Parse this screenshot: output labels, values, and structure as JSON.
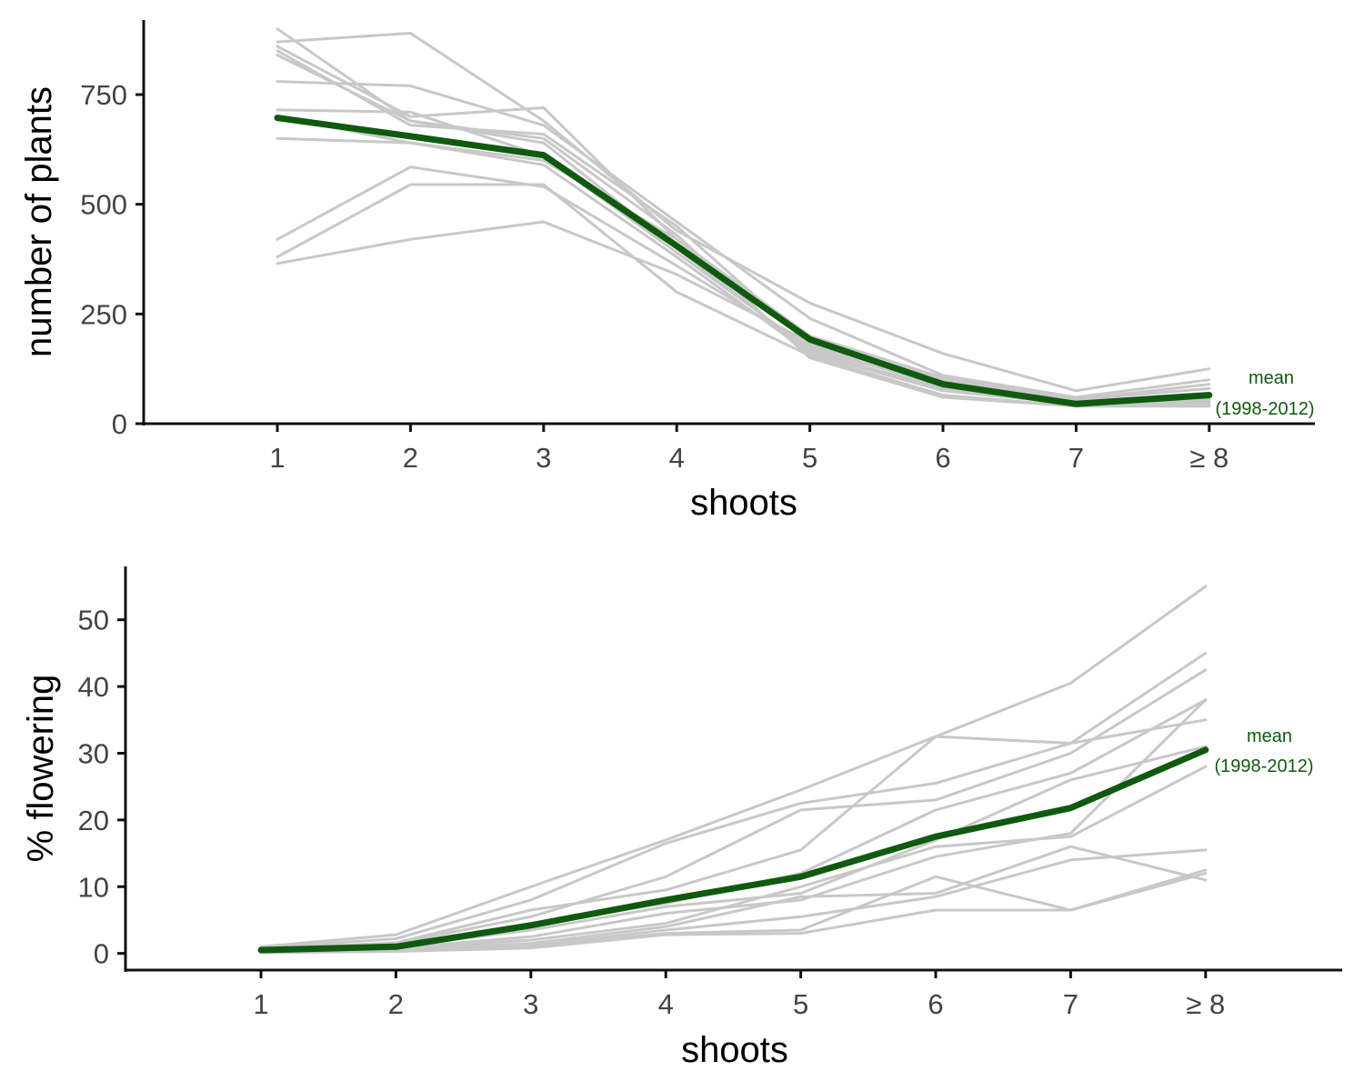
{
  "chart_data": [
    {
      "type": "line",
      "title": "",
      "xlabel": "shoots",
      "ylabel": "number of plants",
      "categories": [
        "1",
        "2",
        "3",
        "4",
        "5",
        "6",
        "7",
        "≥ 8"
      ],
      "yticks": [
        0,
        250,
        500,
        750
      ],
      "ylim": [
        0,
        920
      ],
      "grid": false,
      "legend": "none",
      "colors": {
        "years": "#c8c8c8",
        "mean": "#0f5a0f"
      },
      "series": [
        {
          "values": [
            900,
            690,
            650,
            430,
            150,
            60,
            40,
            45
          ]
        },
        {
          "values": [
            870,
            890,
            690,
            440,
            275,
            160,
            75,
            125
          ]
        },
        {
          "values": [
            860,
            700,
            720,
            420,
            200,
            105,
            55,
            90
          ]
        },
        {
          "values": [
            850,
            680,
            660,
            450,
            180,
            95,
            50,
            70
          ]
        },
        {
          "values": [
            840,
            690,
            640,
            400,
            165,
            80,
            45,
            60
          ]
        },
        {
          "values": [
            780,
            770,
            680,
            460,
            240,
            110,
            60,
            100
          ]
        },
        {
          "values": [
            715,
            710,
            610,
            390,
            170,
            90,
            50,
            65
          ]
        },
        {
          "values": [
            700,
            640,
            590,
            380,
            160,
            75,
            45,
            55
          ]
        },
        {
          "values": [
            650,
            640,
            600,
            420,
            190,
            100,
            55,
            80
          ]
        },
        {
          "values": [
            420,
            585,
            540,
            360,
            175,
            85,
            45,
            50
          ]
        },
        {
          "values": [
            380,
            545,
            545,
            300,
            155,
            65,
            40,
            40
          ]
        },
        {
          "values": [
            365,
            420,
            460,
            340,
            185,
            90,
            50,
            60
          ]
        }
      ],
      "mean": {
        "name": "mean",
        "values": [
          697,
          655,
          612,
          405,
          192,
          90,
          45,
          65
        ]
      },
      "annotation": {
        "line1": "mean",
        "line2": "(1998-2012)"
      }
    },
    {
      "type": "line",
      "title": "",
      "xlabel": "shoots",
      "ylabel": "% flowering",
      "categories": [
        "1",
        "2",
        "3",
        "4",
        "5",
        "6",
        "7",
        "≥ 8"
      ],
      "yticks": [
        0,
        10,
        20,
        30,
        40,
        50
      ],
      "ylim": [
        -2.5,
        58
      ],
      "grid": false,
      "legend": "none",
      "colors": {
        "years": "#c8c8c8",
        "mean": "#0f5a0f"
      },
      "series": [
        {
          "values": [
            1.0,
            2.8,
            10.0,
            17.0,
            24.5,
            32.5,
            40.5,
            55.0
          ]
        },
        {
          "values": [
            0.8,
            2.2,
            8.0,
            16.5,
            22.5,
            25.5,
            31.5,
            45.0
          ]
        },
        {
          "values": [
            0.5,
            1.5,
            5.5,
            11.5,
            21.5,
            23.0,
            30.0,
            42.5
          ]
        },
        {
          "values": [
            0.6,
            1.6,
            6.5,
            9.5,
            15.5,
            32.5,
            31.5,
            35.0
          ]
        },
        {
          "values": [
            0.4,
            1.2,
            4.5,
            7.5,
            12.0,
            21.5,
            27.0,
            38.0
          ]
        },
        {
          "values": [
            0.3,
            1.0,
            3.5,
            7.0,
            9.0,
            17.0,
            26.0,
            31.0
          ]
        },
        {
          "values": [
            0.2,
            0.8,
            2.5,
            6.0,
            8.0,
            14.5,
            18.0,
            38.0
          ]
        },
        {
          "values": [
            0.3,
            0.7,
            2.0,
            4.5,
            10.0,
            16.0,
            17.5,
            28.0
          ]
        },
        {
          "values": [
            0.2,
            0.5,
            1.5,
            4.0,
            8.5,
            9.0,
            16.0,
            11.0
          ]
        },
        {
          "values": [
            0.1,
            0.4,
            1.2,
            3.5,
            5.5,
            8.5,
            14.0,
            15.5
          ]
        },
        {
          "values": [
            0.2,
            0.3,
            1.0,
            3.0,
            3.5,
            11.5,
            6.5,
            12.0
          ]
        },
        {
          "values": [
            0.1,
            0.3,
            0.8,
            2.8,
            3.0,
            6.5,
            6.5,
            12.5
          ]
        }
      ],
      "mean": {
        "name": "mean",
        "values": [
          0.5,
          1.0,
          4.2,
          8.0,
          11.5,
          17.5,
          21.8,
          30.5
        ]
      },
      "annotation": {
        "line1": "mean",
        "line2": "(1998-2012)"
      }
    }
  ]
}
